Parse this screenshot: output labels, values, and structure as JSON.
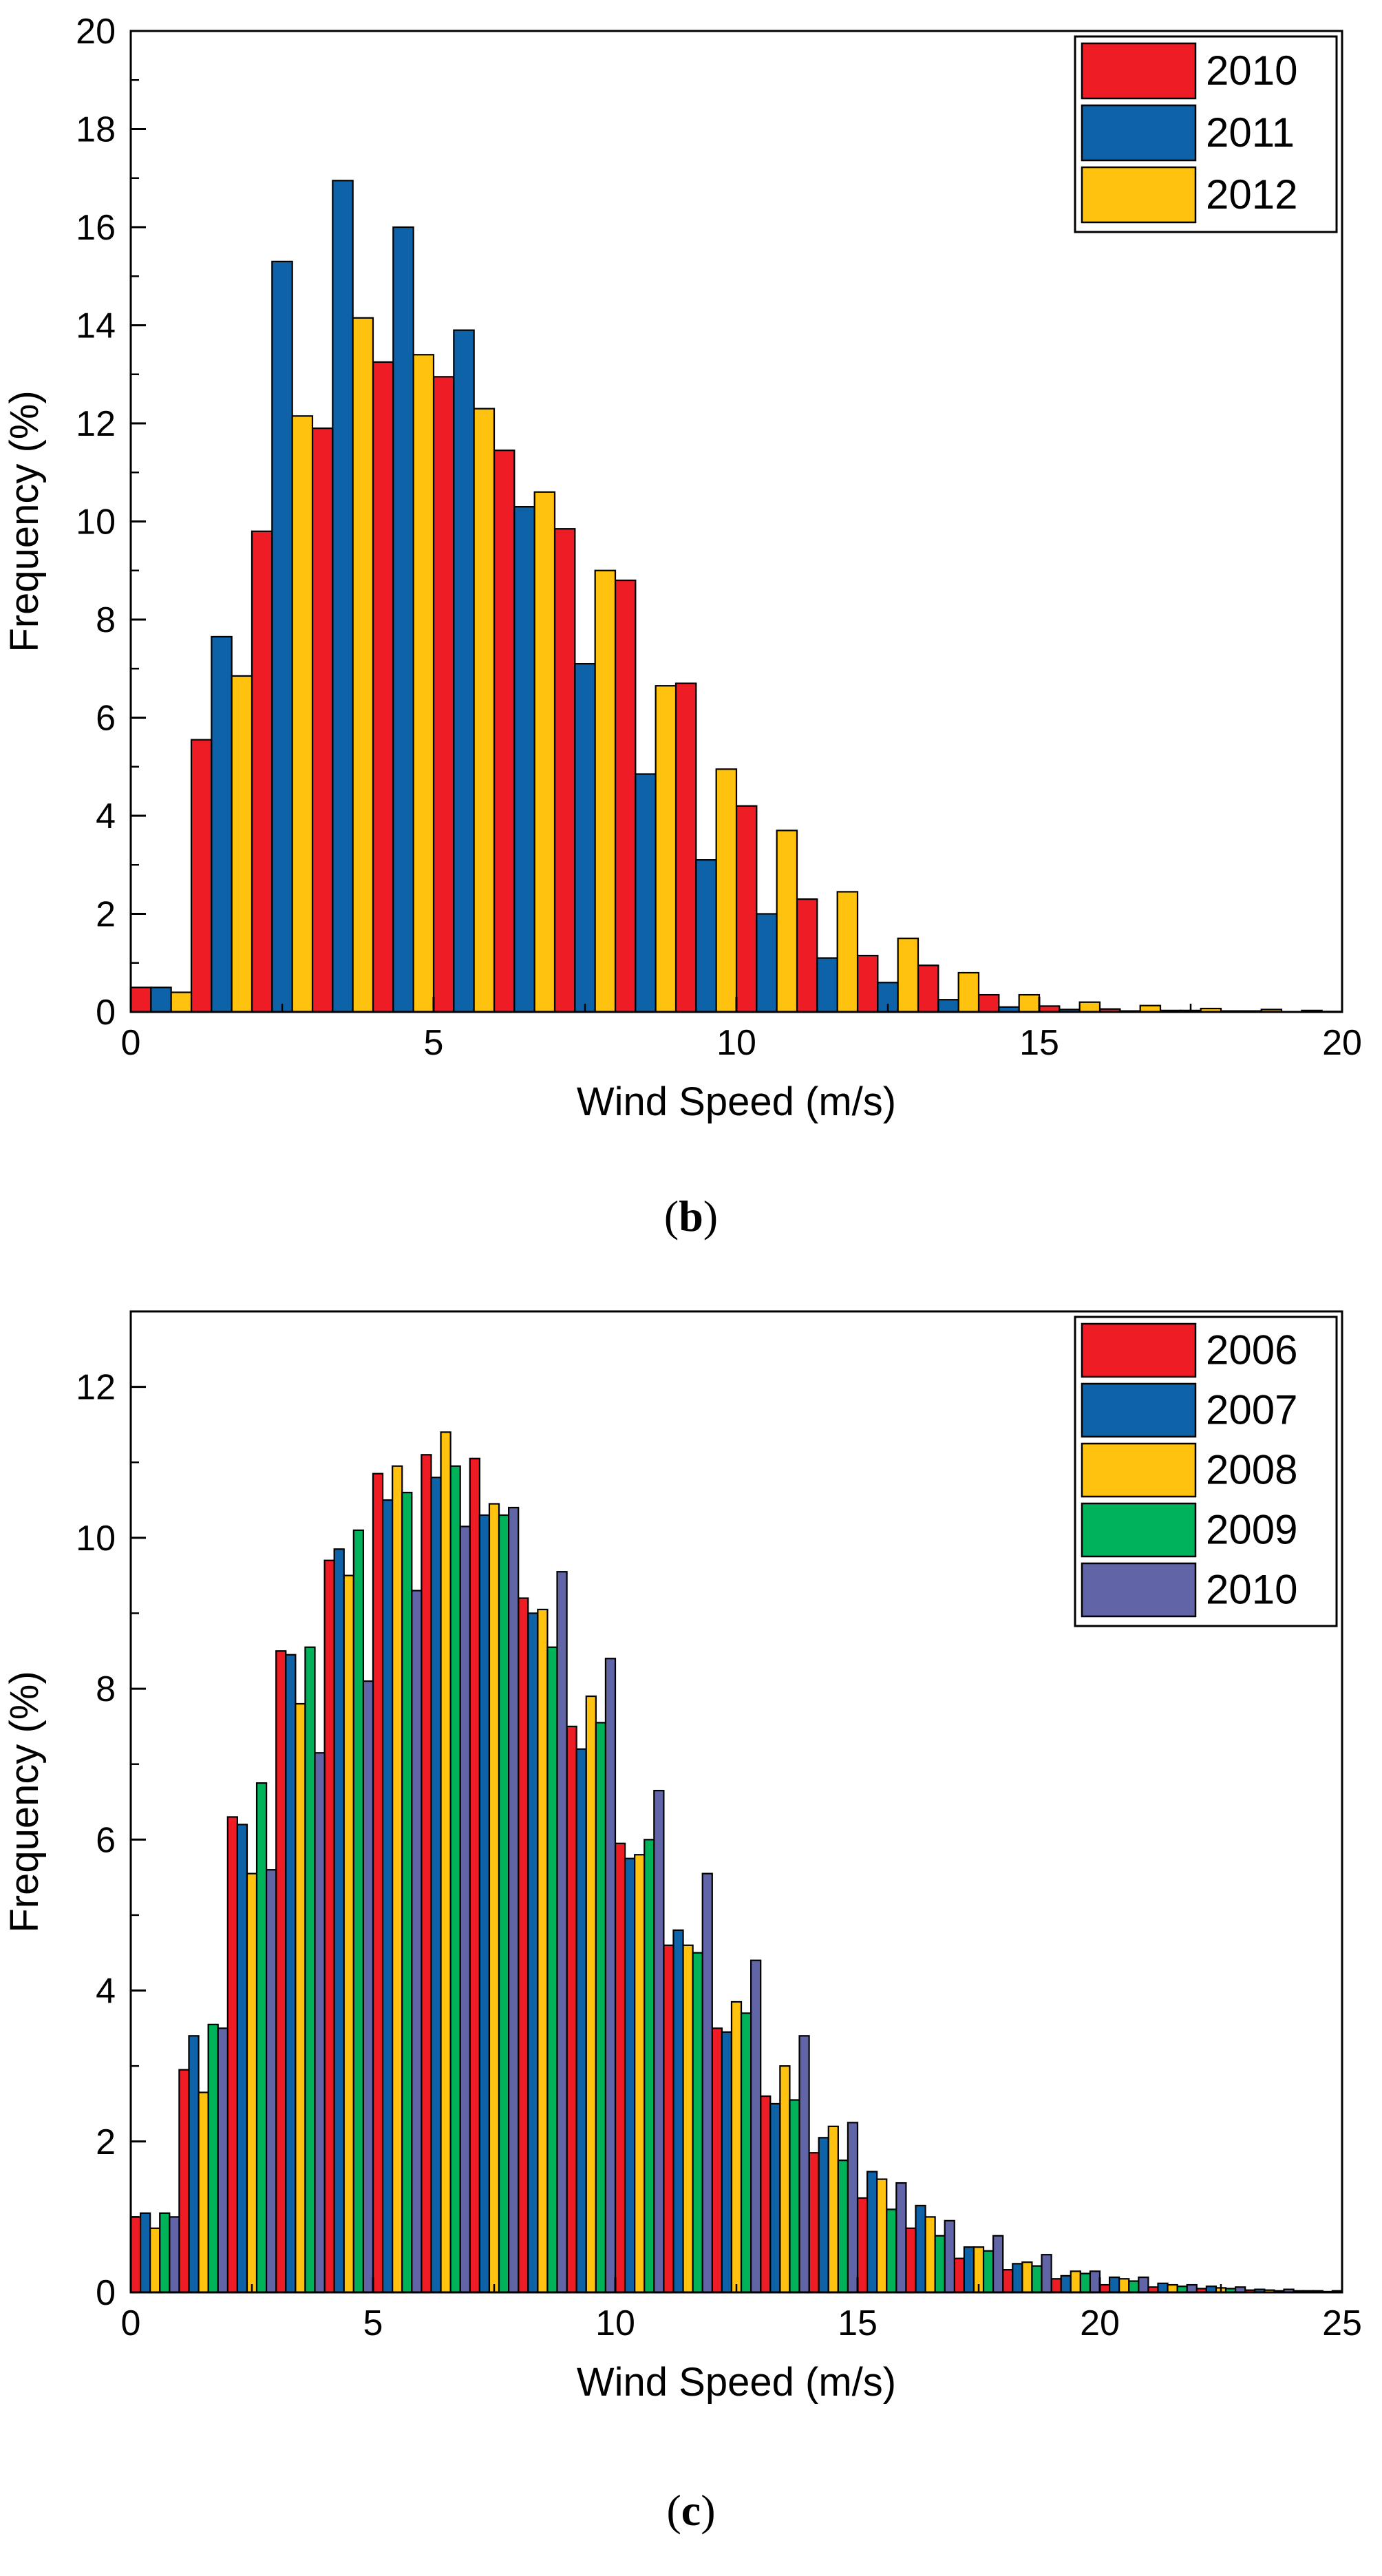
{
  "figure": {
    "captions": [
      {
        "open": "(",
        "letter": "b",
        "close": ")"
      },
      {
        "open": "(",
        "letter": "c",
        "close": ")"
      }
    ]
  },
  "colors": {
    "2006": "#ee1c24",
    "2007": "#0e63a8",
    "2008": "#ffc20e",
    "2009": "#00b25a",
    "2010_b": "#ee1c24",
    "2010_c": "#6264a8",
    "2011": "#0e63a8",
    "2012": "#ffc20e"
  },
  "chart_data": [
    {
      "id": "b",
      "type": "bar",
      "title": "",
      "xlabel": "Wind Speed (m/s)",
      "ylabel": "Frequency (%)",
      "xlim": [
        0,
        20
      ],
      "ylim": [
        0,
        20
      ],
      "xticks": [
        0,
        5,
        10,
        15,
        20
      ],
      "yticks": [
        0,
        2,
        4,
        6,
        8,
        10,
        12,
        14,
        16,
        18,
        20
      ],
      "legend": "top-right",
      "categories": [
        0,
        1,
        2,
        3,
        4,
        5,
        6,
        7,
        8,
        9,
        10,
        11,
        12,
        13,
        14,
        15,
        16,
        17,
        18,
        19
      ],
      "series": [
        {
          "name": "2010",
          "color": "#ee1c24",
          "values": [
            0.5,
            5.55,
            9.8,
            11.9,
            13.25,
            12.95,
            11.45,
            9.85,
            8.8,
            6.7,
            4.2,
            2.3,
            1.15,
            0.95,
            0.35,
            0.12,
            0.06,
            0.03,
            0.02,
            0.0
          ]
        },
        {
          "name": "2011",
          "color": "#0e63a8",
          "values": [
            0.5,
            7.65,
            15.3,
            16.95,
            16.0,
            13.9,
            10.3,
            7.1,
            4.85,
            3.1,
            2.0,
            1.1,
            0.6,
            0.25,
            0.1,
            0.05,
            0.02,
            0.03,
            0.02,
            0.03
          ]
        },
        {
          "name": "2012",
          "color": "#ffc20e",
          "values": [
            0.4,
            6.85,
            12.15,
            14.15,
            13.4,
            12.3,
            10.6,
            9.0,
            6.65,
            4.95,
            3.7,
            2.45,
            1.5,
            0.8,
            0.35,
            0.2,
            0.13,
            0.07,
            0.05,
            0.01
          ]
        }
      ]
    },
    {
      "id": "c",
      "type": "bar",
      "title": "",
      "xlabel": "Wind Speed (m/s)",
      "ylabel": "Frequency (%)",
      "xlim": [
        0,
        25
      ],
      "ylim": [
        0,
        13
      ],
      "xticks": [
        0,
        5,
        10,
        15,
        20,
        25
      ],
      "yticks": [
        0,
        2,
        4,
        6,
        8,
        10,
        12
      ],
      "legend": "top-right",
      "categories": [
        0,
        1,
        2,
        3,
        4,
        5,
        6,
        7,
        8,
        9,
        10,
        11,
        12,
        13,
        14,
        15,
        16,
        17,
        18,
        19,
        20,
        21,
        22,
        23,
        24
      ],
      "series": [
        {
          "name": "2006",
          "color": "#ee1c24",
          "values": [
            1.0,
            2.95,
            6.3,
            8.5,
            9.7,
            10.85,
            11.1,
            11.05,
            9.2,
            7.5,
            5.95,
            4.6,
            3.5,
            2.6,
            1.85,
            1.25,
            0.85,
            0.45,
            0.3,
            0.18,
            0.1,
            0.07,
            0.05,
            0.03,
            0.02
          ]
        },
        {
          "name": "2007",
          "color": "#0e63a8",
          "values": [
            1.05,
            3.4,
            6.2,
            8.45,
            9.85,
            10.5,
            10.8,
            10.3,
            9.0,
            7.2,
            5.75,
            4.8,
            3.45,
            2.5,
            2.05,
            1.6,
            1.15,
            0.6,
            0.38,
            0.22,
            0.2,
            0.12,
            0.08,
            0.04,
            0.02
          ]
        },
        {
          "name": "2008",
          "color": "#ffc20e",
          "values": [
            0.85,
            2.65,
            5.55,
            7.8,
            9.5,
            10.95,
            11.4,
            10.45,
            9.05,
            7.9,
            5.8,
            4.6,
            3.85,
            3.0,
            2.2,
            1.5,
            1.0,
            0.6,
            0.4,
            0.28,
            0.18,
            0.1,
            0.06,
            0.03,
            0.02
          ]
        },
        {
          "name": "2009",
          "color": "#00b25a",
          "values": [
            1.05,
            3.55,
            6.75,
            8.55,
            10.1,
            10.6,
            10.95,
            10.3,
            8.55,
            7.55,
            6.0,
            4.5,
            3.7,
            2.55,
            1.75,
            1.1,
            0.75,
            0.55,
            0.35,
            0.25,
            0.15,
            0.08,
            0.05,
            0.02,
            0.01
          ]
        },
        {
          "name": "2010",
          "color": "#6264a8",
          "values": [
            1.0,
            3.5,
            5.6,
            7.15,
            8.1,
            9.3,
            10.15,
            10.4,
            9.55,
            8.4,
            6.65,
            5.55,
            4.4,
            3.4,
            2.25,
            1.45,
            0.95,
            0.75,
            0.5,
            0.28,
            0.2,
            0.1,
            0.07,
            0.04,
            0.02
          ]
        }
      ]
    }
  ]
}
